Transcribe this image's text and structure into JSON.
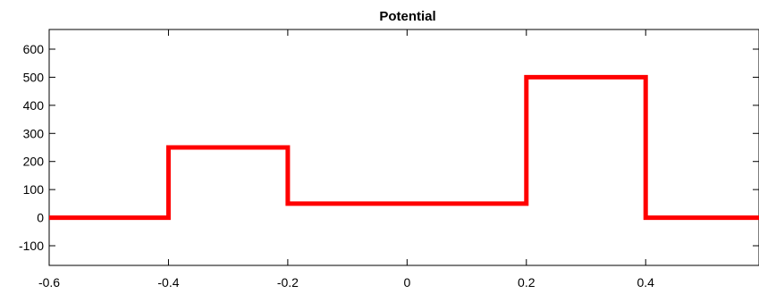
{
  "chart_data": {
    "type": "line",
    "title": "Potential",
    "xlabel": "",
    "ylabel": "",
    "xlim": [
      -0.6,
      0.59
    ],
    "ylim": [
      -170,
      670
    ],
    "xticks": [
      -0.6,
      -0.4,
      -0.2,
      0,
      0.2,
      0.4
    ],
    "xtick_labels": [
      "-0.6",
      "-0.4",
      "-0.2",
      "0",
      "0.2",
      "0.4"
    ],
    "yticks": [
      -100,
      0,
      100,
      200,
      300,
      400,
      500,
      600
    ],
    "ytick_labels": [
      "-100",
      "0",
      "100",
      "200",
      "300",
      "400",
      "500",
      "600"
    ],
    "grid": false,
    "legend": "none",
    "series": [
      {
        "color": "#ff0000",
        "x": [
          -0.6,
          -0.4,
          -0.4,
          -0.2,
          -0.2,
          0.2,
          0.2,
          0.4,
          0.4,
          0.59
        ],
        "y": [
          0,
          0,
          250,
          250,
          50,
          50,
          500,
          500,
          0,
          0
        ]
      }
    ]
  }
}
